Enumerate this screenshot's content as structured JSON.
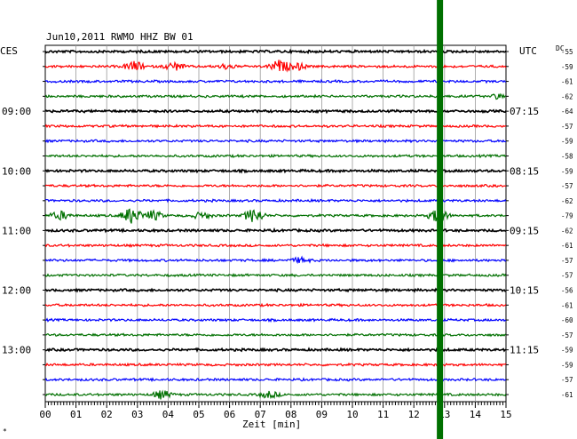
{
  "header": {
    "title": "Jun10,2011   RWMO HHZ BW 01",
    "left_zone": "CES",
    "right_zone": "UTC",
    "dc_label": "DC"
  },
  "footer": {
    "xlabel": "Zeit [min]",
    "corner_mark": "*"
  },
  "chart_data": {
    "type": "line",
    "title": "Jun10,2011   RWMO HHZ BW 01",
    "xlabel": "Zeit [min]",
    "xlim": [
      0,
      15
    ],
    "x_ticks": [
      "00",
      "01",
      "02",
      "03",
      "04",
      "05",
      "06",
      "07",
      "08",
      "09",
      "10",
      "11",
      "12",
      "13",
      "14",
      "15"
    ],
    "rows_per_hour": 4,
    "grid": true,
    "trace_colors": [
      "#000000",
      "#ff0000",
      "#0000ff",
      "#007000"
    ],
    "left_time_labels": [
      {
        "row": 4,
        "label": "09:00"
      },
      {
        "row": 8,
        "label": "10:00"
      },
      {
        "row": 12,
        "label": "11:00"
      },
      {
        "row": 16,
        "label": "12:00"
      },
      {
        "row": 20,
        "label": "13:00"
      }
    ],
    "right_time_labels": [
      {
        "row": 4,
        "label": "07:15"
      },
      {
        "row": 8,
        "label": "08:15"
      },
      {
        "row": 12,
        "label": "09:15"
      },
      {
        "row": 16,
        "label": "10:15"
      },
      {
        "row": 20,
        "label": "11:15"
      }
    ],
    "dc_offsets": [
      -55,
      -59,
      -61,
      -62,
      -64,
      -57,
      -59,
      -58,
      -59,
      -57,
      -62,
      -79,
      -62,
      -61,
      -57,
      -57,
      -56,
      -61,
      -60,
      -57,
      -59,
      -59,
      -57,
      -61
    ],
    "events": [
      {
        "row": 1,
        "minute": 2.9,
        "amp": 0.6
      },
      {
        "row": 1,
        "minute": 4.2,
        "amp": 0.5
      },
      {
        "row": 1,
        "minute": 5.9,
        "amp": 0.3
      },
      {
        "row": 1,
        "minute": 7.6,
        "amp": 0.7
      },
      {
        "row": 1,
        "minute": 8.2,
        "amp": 0.4
      },
      {
        "row": 3,
        "minute": 14.8,
        "amp": 0.3
      },
      {
        "row": 11,
        "minute": 0.5,
        "amp": 0.5
      },
      {
        "row": 11,
        "minute": 2.8,
        "amp": 1.0
      },
      {
        "row": 11,
        "minute": 3.5,
        "amp": 0.6
      },
      {
        "row": 11,
        "minute": 5.1,
        "amp": 0.4
      },
      {
        "row": 11,
        "minute": 6.8,
        "amp": 0.9
      },
      {
        "row": 11,
        "minute": 12.8,
        "amp": 0.8
      },
      {
        "row": 14,
        "minute": 8.3,
        "amp": 0.3
      },
      {
        "row": 23,
        "minute": 3.8,
        "amp": 0.5
      },
      {
        "row": 23,
        "minute": 7.3,
        "amp": 0.4
      }
    ],
    "marker_minute": 12.85,
    "marker_color": "#007000"
  }
}
